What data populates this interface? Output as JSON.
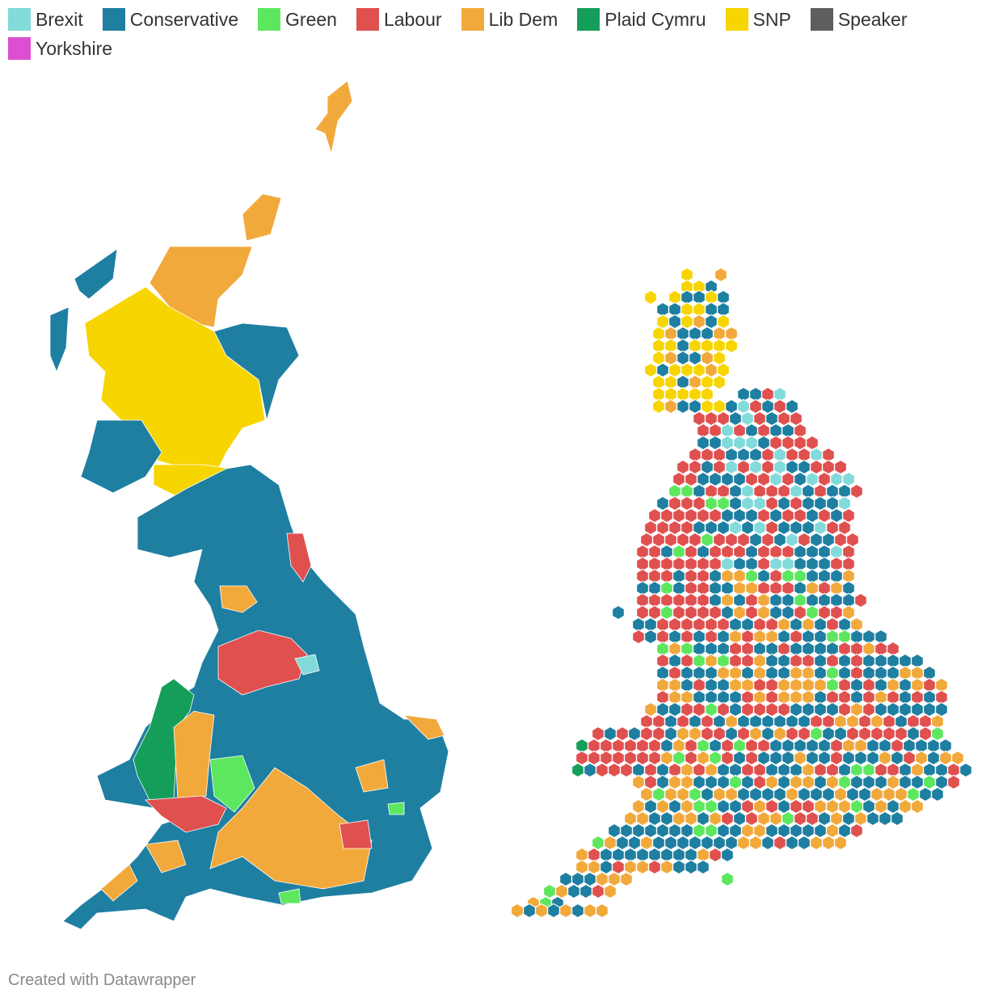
{
  "legend": [
    {
      "name": "Brexit",
      "color": "#82dada"
    },
    {
      "name": "Conservative",
      "color": "#1e7fa1"
    },
    {
      "name": "Green",
      "color": "#5de75f"
    },
    {
      "name": "Labour",
      "color": "#e0504f"
    },
    {
      "name": "Lib Dem",
      "color": "#f2a93b"
    },
    {
      "name": "Plaid Cymru",
      "color": "#159e5a"
    },
    {
      "name": "SNP",
      "color": "#f7d500"
    },
    {
      "name": "Speaker",
      "color": "#5e5e5e"
    },
    {
      "name": "Yorkshire",
      "color": "#dd4fd0"
    }
  ],
  "footer": "Created with Datawrapper"
}
